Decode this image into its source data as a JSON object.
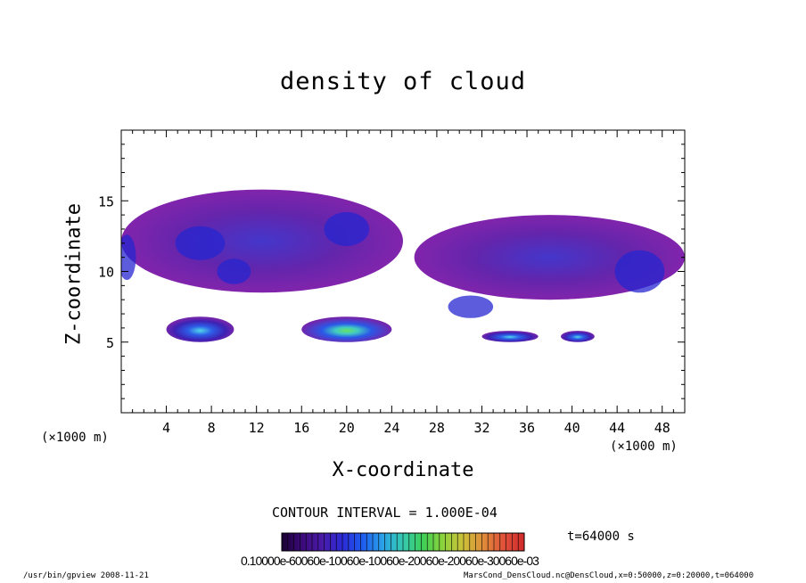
{
  "chart_data": {
    "type": "heatmap",
    "title": "density of cloud",
    "xlabel": "X-coordinate",
    "ylabel": "Z-coordinate",
    "x_unit": "(×1000 m)",
    "y_unit": "(×1000 m)",
    "xlim": [
      0,
      50
    ],
    "ylim": [
      0,
      20
    ],
    "x_ticks": [
      4,
      8,
      12,
      16,
      20,
      24,
      28,
      32,
      36,
      40,
      44,
      48
    ],
    "y_ticks": [
      5,
      10,
      15
    ],
    "contour_interval": "CONTOUR INTERVAL = 1.000E-04",
    "time_label": "t=64000 s",
    "colorbar_tick_text": "0.10000e-60060e-10060e-10060e-20060e-20060e-30060e-03",
    "colorbar_colors": [
      "#1a0033",
      "#3b0a7a",
      "#4a1aa8",
      "#2b2bd6",
      "#1e5cf0",
      "#2aa3e8",
      "#34c9b0",
      "#3fcf55",
      "#8fd23a",
      "#cdbf3a",
      "#e08a3a",
      "#e0503a",
      "#d02a2a"
    ],
    "regions": [
      {
        "x": [
          0,
          25
        ],
        "z": [
          8.5,
          15.8
        ],
        "level": "low",
        "note": ""
      },
      {
        "x": [
          26,
          50
        ],
        "z": [
          8,
          14
        ],
        "level": "low",
        "note": ""
      },
      {
        "x": [
          4,
          10
        ],
        "z": [
          5,
          6.8
        ],
        "level": "mid",
        "note": ""
      },
      {
        "x": [
          16,
          24
        ],
        "z": [
          5,
          6.8
        ],
        "level": "high",
        "note": ""
      },
      {
        "x": [
          32,
          37
        ],
        "z": [
          5,
          5.8
        ],
        "level": "mid",
        "note": ""
      },
      {
        "x": [
          39,
          42
        ],
        "z": [
          5,
          5.8
        ],
        "level": "mid",
        "note": ""
      }
    ]
  },
  "footer": {
    "left": "/usr/bin/gpview   2008-11-21",
    "right": "MarsCond_DensCloud.nc@DensCloud,x=0:50000,z=0:20000,t=064000"
  }
}
